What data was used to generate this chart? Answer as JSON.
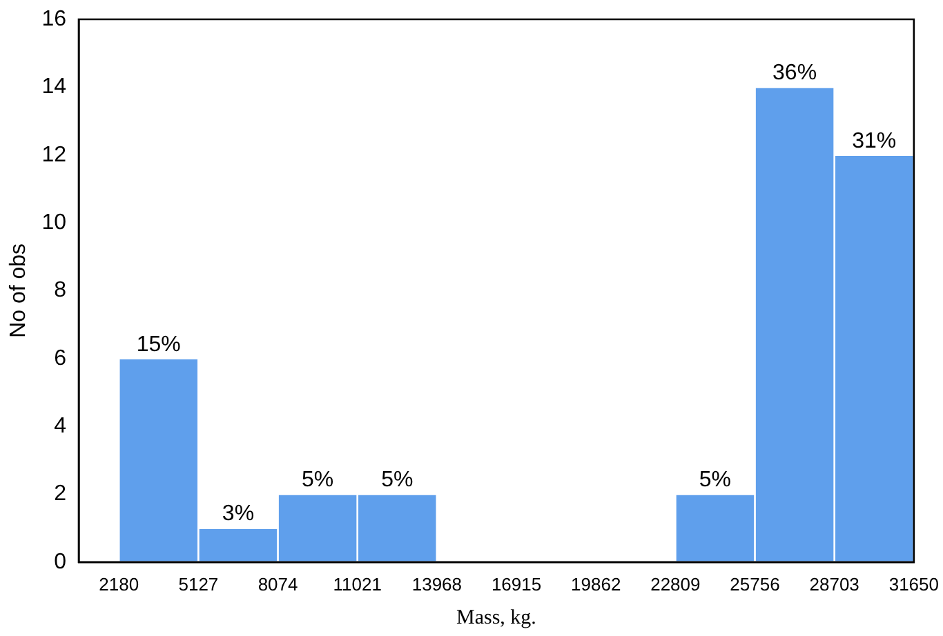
{
  "chart_data": {
    "type": "histogram",
    "xlabel": "Mass, kg.",
    "ylabel": "No of obs",
    "bins": [
      2180,
      5127,
      8074,
      11021,
      13968,
      16915,
      19862,
      22809,
      25756,
      28703,
      31650
    ],
    "values": [
      6,
      1,
      2,
      2,
      0,
      0,
      0,
      2,
      14,
      12
    ],
    "annotations": [
      {
        "text": "15%",
        "x": 3653.5,
        "y": 6
      },
      {
        "text": "3%",
        "x": 6600.5,
        "y": 1
      },
      {
        "text": "5%",
        "x": 9547.5,
        "y": 2
      },
      {
        "text": "5%",
        "x": 12494.5,
        "y": 2
      },
      {
        "text": "5%",
        "x": 24282.5,
        "y": 2
      },
      {
        "text": "36%",
        "x": 27229.5,
        "y": 14
      },
      {
        "text": "31%",
        "x": 30176.5,
        "y": 12
      }
    ],
    "color": "#5f9fec",
    "xlim": [
      690,
      31650
    ],
    "xticks": [
      2180,
      5127,
      8074,
      11021,
      13968,
      16915,
      19862,
      22809,
      25756,
      28703,
      31650
    ],
    "ylim": [
      0,
      16
    ],
    "yticks": [
      0,
      2,
      4,
      6,
      8,
      10,
      12,
      14,
      16
    ],
    "grid": false,
    "legend": false
  }
}
